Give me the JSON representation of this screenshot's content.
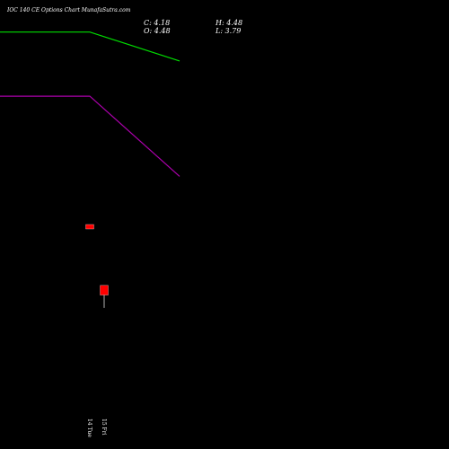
{
  "header": {
    "title": "IOC 140 CE Options  Chart MunafaSutra.com",
    "close_label": "C: 4.18",
    "open_label": "O: 4.48",
    "high_label": "H: 4.48",
    "low_label": "L: 3.79"
  },
  "chart_data": {
    "type": "candlestick",
    "title": "IOC 140 CE Options  Chart MunafaSutra.com",
    "ylim": [
      0,
      14
    ],
    "candles": [
      {
        "date": "14 Tue",
        "open": 7.0,
        "high": 7.0,
        "low": 6.9,
        "close": 6.9
      },
      {
        "date": "15 Fri",
        "open": 5.1,
        "high": 5.1,
        "low": 4.4,
        "close": 4.8
      }
    ],
    "lines": [
      {
        "name": "",
        "color": "#00dd00",
        "values": [
          13.0,
          13.0,
          12.1
        ]
      },
      {
        "name": "",
        "color": "#aa00aa",
        "values": [
          11.0,
          11.0,
          8.5
        ]
      }
    ],
    "line_x": [
      0,
      1,
      2
    ],
    "colors": {
      "bearish": "#ff0000",
      "background": "#000000"
    }
  }
}
